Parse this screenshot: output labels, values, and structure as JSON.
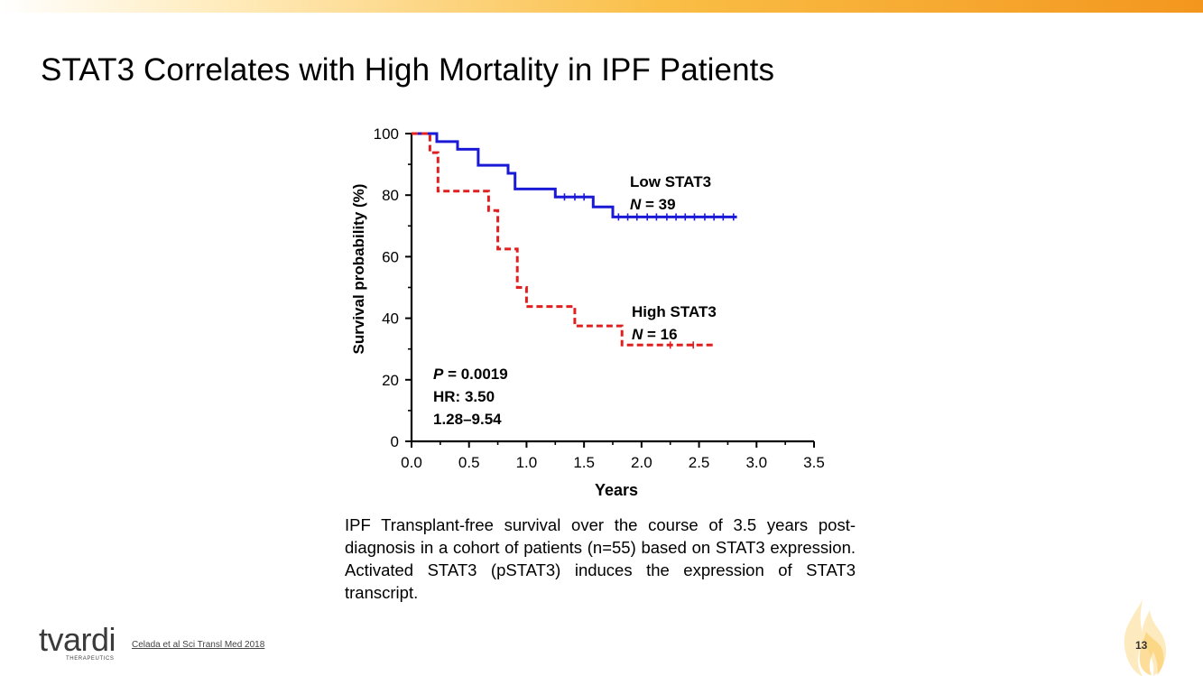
{
  "slide": {
    "title": "STAT3 Correlates with High Mortality in IPF Patients",
    "caption": "IPF Transplant-free survival over the course of 3.5 years post-diagnosis in a cohort of patients (n=55) based on STAT3 expression. Activated STAT3 (pSTAT3) induces the expression of STAT3 transcript.",
    "citation": "Celada et al Sci Transl Med 2018",
    "page_number": "13",
    "logo_text": "tvardi",
    "logo_subtext": "THERAPEUTICS"
  },
  "colors": {
    "low_series": "#1a1ad6",
    "high_series": "#e02020",
    "accent": "#f39a1e"
  },
  "chart_data": {
    "type": "line",
    "title": "",
    "xlabel": "Years",
    "ylabel": "Survival probability (%)",
    "xlim": [
      0,
      3.5
    ],
    "ylim": [
      0,
      100
    ],
    "xticks": [
      "0.0",
      "0.5",
      "1.0",
      "1.5",
      "2.0",
      "2.5",
      "3.0",
      "3.5"
    ],
    "yticks": [
      "0",
      "20",
      "40",
      "60",
      "80",
      "100"
    ],
    "series": [
      {
        "name": "Low STAT3",
        "n_label": "N = 39",
        "style": "solid",
        "steps": [
          [
            0,
            100
          ],
          [
            0.22,
            100
          ],
          [
            0.22,
            97.4
          ],
          [
            0.4,
            97.4
          ],
          [
            0.4,
            94.9
          ],
          [
            0.58,
            94.9
          ],
          [
            0.58,
            89.7
          ],
          [
            0.84,
            89.7
          ],
          [
            0.84,
            87.1
          ],
          [
            0.9,
            87.1
          ],
          [
            0.9,
            82
          ],
          [
            1.25,
            82
          ],
          [
            1.25,
            79.4
          ],
          [
            1.58,
            79.4
          ],
          [
            1.58,
            76.2
          ],
          [
            1.75,
            76.2
          ],
          [
            1.75,
            72.9
          ],
          [
            2.83,
            72.9
          ]
        ],
        "censor_x": [
          1.33,
          1.42,
          1.5,
          1.8,
          1.88,
          1.96,
          2.05,
          2.13,
          2.22,
          2.3,
          2.38,
          2.46,
          2.55,
          2.63,
          2.71,
          2.8
        ]
      },
      {
        "name": "High STAT3",
        "n_label": "N = 16",
        "style": "dashed",
        "steps": [
          [
            0,
            100
          ],
          [
            0.16,
            100
          ],
          [
            0.16,
            93.8
          ],
          [
            0.23,
            93.8
          ],
          [
            0.23,
            81.3
          ],
          [
            0.67,
            81.3
          ],
          [
            0.67,
            75
          ],
          [
            0.75,
            75
          ],
          [
            0.75,
            62.5
          ],
          [
            0.92,
            62.5
          ],
          [
            0.92,
            50
          ],
          [
            1.0,
            50
          ],
          [
            1.0,
            43.8
          ],
          [
            1.42,
            43.8
          ],
          [
            1.42,
            37.5
          ],
          [
            1.83,
            37.5
          ],
          [
            1.83,
            31.3
          ],
          [
            2.65,
            31.3
          ]
        ],
        "censor_x": [
          2.25,
          2.45
        ]
      }
    ],
    "annotations": {
      "p_label": "P",
      "p_value": " = 0.0019",
      "hr": "HR: 3.50",
      "ci": "1.28–9.54",
      "low_label": "Low STAT3",
      "low_n_italic": "N",
      "low_n_value": " = 39",
      "high_label": "High STAT3",
      "high_n_italic": "N",
      "high_n_value": " = 16"
    },
    "grid": false,
    "legend": "inline labels right of curves"
  }
}
